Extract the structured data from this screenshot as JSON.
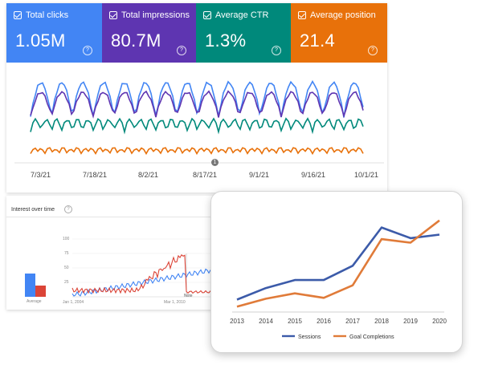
{
  "search_console": {
    "tiles": [
      {
        "label": "Total clicks",
        "value": "1.05M",
        "color": "#4285f4"
      },
      {
        "label": "Total impressions",
        "value": "80.7M",
        "color": "#5e35b1"
      },
      {
        "label": "Average CTR",
        "value": "1.3%",
        "color": "#00897b"
      },
      {
        "label": "Average position",
        "value": "21.4",
        "color": "#e8710a"
      }
    ],
    "help_glyph": "?",
    "annotation_marker": "1",
    "x_labels": [
      "7/3/21",
      "7/18/21",
      "8/2/21",
      "8/17/21",
      "9/1/21",
      "9/16/21",
      "10/1/21"
    ]
  },
  "trends": {
    "title": "Interest over time",
    "help_glyph": "?",
    "bar_label": "Average",
    "y_ticks": [
      "100",
      "75",
      "50",
      "25"
    ],
    "x_ticks": [
      "Jan 1, 2004",
      "Mar 1, 2010"
    ],
    "note_label": "Note"
  },
  "analytics": {
    "chart_data": {
      "type": "line",
      "x": [
        "2013",
        "2014",
        "2015",
        "2016",
        "2017",
        "2018",
        "2019",
        "2020"
      ],
      "series": [
        {
          "name": "Sessions",
          "color": "#3c5ba9",
          "values": [
            14,
            27,
            36,
            36,
            52,
            95,
            83,
            87
          ]
        },
        {
          "name": "Goal Completions",
          "color": "#e07b39",
          "values": [
            6,
            15,
            21,
            16,
            30,
            82,
            78,
            103
          ]
        }
      ],
      "ylim": [
        0,
        110
      ],
      "grid": true,
      "legend": "bottom"
    }
  }
}
